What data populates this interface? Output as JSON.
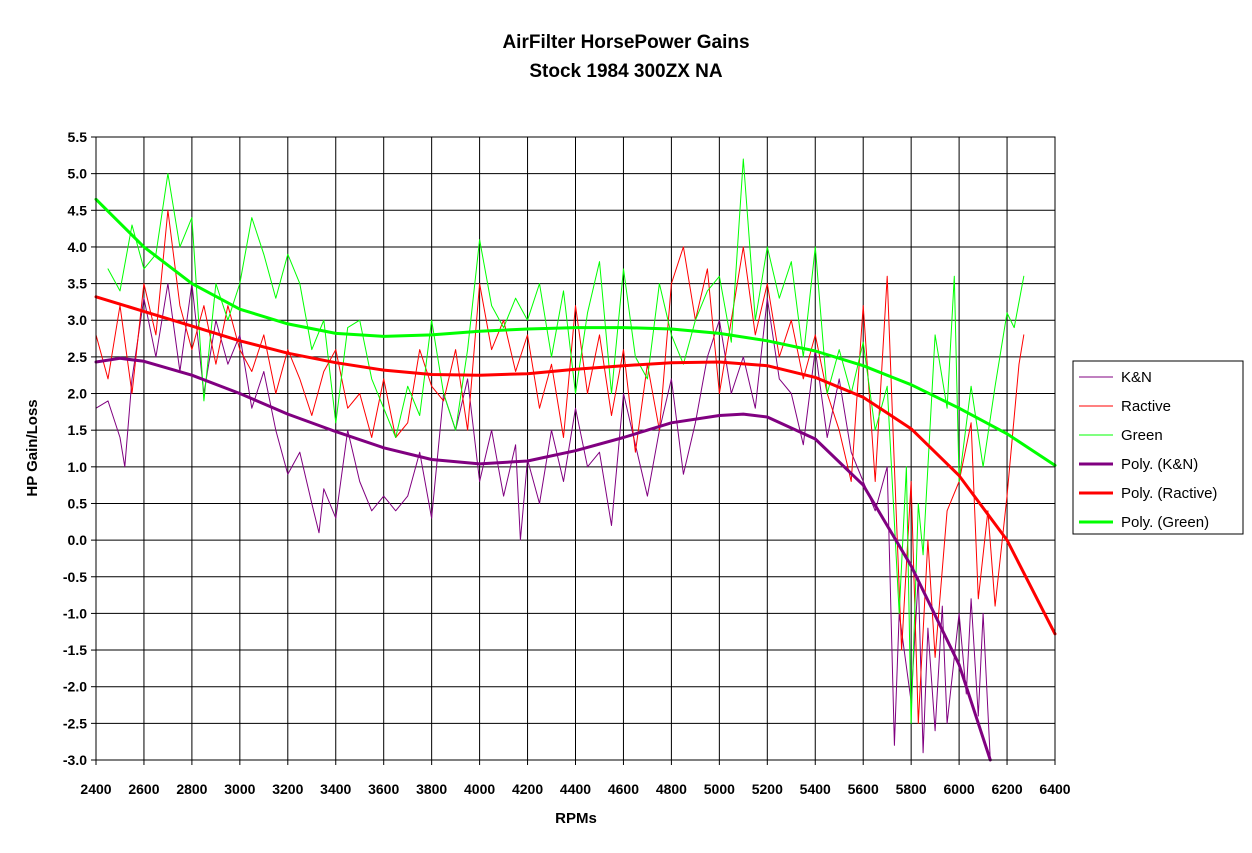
{
  "chart_data": {
    "type": "line",
    "title": "AirFilter HorsePower Gains",
    "subtitle": "Stock 1984 300ZX NA",
    "xlabel": "RPMs",
    "ylabel": "HP Gain/Loss",
    "xlim": [
      2400,
      6400
    ],
    "ylim": [
      -3.0,
      5.5
    ],
    "x_ticks": [
      2400,
      2600,
      2800,
      3000,
      3200,
      3400,
      3600,
      3800,
      4000,
      4200,
      4400,
      4600,
      4800,
      5000,
      5200,
      5400,
      5600,
      5800,
      6000,
      6200,
      6400
    ],
    "y_ticks": [
      5.5,
      5.0,
      4.5,
      4.0,
      3.5,
      3.0,
      2.5,
      2.0,
      1.5,
      1.0,
      0.5,
      0.0,
      -0.5,
      -1.0,
      -1.5,
      -2.0,
      -2.5,
      -3.0
    ],
    "y_tick_labels": [
      "5.5",
      "5.0",
      "4.5",
      "4.0",
      "3.5",
      "3.0",
      "2.5",
      "2.0",
      "1.5",
      "1.0",
      "0.5",
      "0.0",
      "-0.5",
      "-1.0",
      "-1.5",
      "-2.0",
      "-2.5",
      "-3.0"
    ],
    "grid": true,
    "legend_position": "right",
    "series": [
      {
        "name": "K&N",
        "color": "#800080",
        "width": 1,
        "x": [
          2400,
          2450,
          2500,
          2520,
          2550,
          2600,
          2650,
          2700,
          2750,
          2800,
          2850,
          2900,
          2950,
          3000,
          3050,
          3100,
          3150,
          3200,
          3250,
          3300,
          3330,
          3350,
          3400,
          3450,
          3500,
          3550,
          3600,
          3650,
          3700,
          3750,
          3800,
          3850,
          3900,
          3950,
          4000,
          4050,
          4100,
          4150,
          4170,
          4200,
          4250,
          4300,
          4350,
          4400,
          4450,
          4500,
          4550,
          4600,
          4650,
          4700,
          4750,
          4800,
          4850,
          4900,
          4950,
          5000,
          5050,
          5100,
          5150,
          5200,
          5250,
          5300,
          5350,
          5400,
          5450,
          5500,
          5550,
          5600,
          5650,
          5700,
          5730,
          5750,
          5800,
          5830,
          5850,
          5870,
          5900,
          5930,
          5950,
          6000,
          6030,
          6050,
          6080,
          6100,
          6130
        ],
        "y": [
          1.8,
          1.9,
          1.4,
          1.0,
          2.2,
          3.3,
          2.5,
          3.5,
          2.3,
          3.5,
          2.0,
          3.0,
          2.4,
          2.8,
          1.8,
          2.3,
          1.5,
          0.9,
          1.2,
          0.5,
          0.1,
          0.7,
          0.3,
          1.5,
          0.8,
          0.4,
          0.6,
          0.4,
          0.6,
          1.2,
          0.3,
          2.0,
          1.5,
          2.2,
          0.8,
          1.5,
          0.6,
          1.3,
          0.0,
          1.1,
          0.5,
          1.5,
          0.8,
          1.8,
          1.0,
          1.2,
          0.2,
          2.0,
          1.3,
          0.6,
          1.5,
          2.2,
          0.9,
          1.6,
          2.5,
          3.0,
          2.0,
          2.5,
          1.8,
          3.3,
          2.2,
          2.0,
          1.3,
          2.6,
          1.4,
          2.2,
          1.2,
          0.8,
          0.4,
          1.0,
          -2.8,
          -1.0,
          -2.2,
          -0.5,
          -2.9,
          -1.2,
          -2.6,
          -0.9,
          -2.5,
          -1.0,
          -2.1,
          -0.8,
          -2.4,
          -1.0,
          -3.0
        ]
      },
      {
        "name": "Ractive",
        "color": "#ff0000",
        "width": 1,
        "x": [
          2400,
          2450,
          2500,
          2550,
          2600,
          2650,
          2700,
          2750,
          2800,
          2850,
          2900,
          2950,
          3000,
          3050,
          3100,
          3150,
          3200,
          3250,
          3300,
          3350,
          3400,
          3450,
          3500,
          3550,
          3600,
          3650,
          3700,
          3750,
          3800,
          3850,
          3900,
          3950,
          4000,
          4050,
          4100,
          4150,
          4200,
          4250,
          4300,
          4350,
          4400,
          4450,
          4500,
          4550,
          4600,
          4650,
          4700,
          4750,
          4800,
          4850,
          4900,
          4950,
          5000,
          5050,
          5100,
          5150,
          5200,
          5250,
          5300,
          5350,
          5400,
          5450,
          5500,
          5550,
          5600,
          5650,
          5700,
          5730,
          5760,
          5800,
          5830,
          5870,
          5900,
          5950,
          6000,
          6050,
          6080,
          6120,
          6150,
          6200,
          6250,
          6270
        ],
        "y": [
          2.8,
          2.2,
          3.2,
          2.0,
          3.5,
          2.8,
          4.5,
          3.2,
          2.6,
          3.2,
          2.4,
          3.2,
          2.6,
          2.3,
          2.8,
          2.0,
          2.6,
          2.2,
          1.7,
          2.3,
          2.6,
          1.8,
          2.0,
          1.4,
          2.2,
          1.4,
          1.6,
          2.6,
          2.1,
          1.9,
          2.6,
          1.5,
          3.5,
          2.6,
          3.0,
          2.3,
          2.8,
          1.8,
          2.4,
          1.4,
          3.2,
          2.0,
          2.8,
          1.7,
          2.6,
          1.2,
          2.4,
          1.5,
          3.5,
          4.0,
          3.0,
          3.7,
          2.0,
          3.0,
          4.0,
          2.8,
          3.5,
          2.5,
          3.0,
          2.2,
          2.8,
          2.0,
          1.5,
          0.8,
          3.2,
          0.8,
          3.6,
          1.0,
          -1.5,
          0.8,
          -2.5,
          0.0,
          -1.6,
          0.4,
          0.8,
          1.6,
          -0.8,
          0.4,
          -0.9,
          0.6,
          2.4,
          2.8
        ]
      },
      {
        "name": "Green",
        "color": "#00ff00",
        "width": 1,
        "x": [
          2450,
          2500,
          2550,
          2600,
          2650,
          2700,
          2750,
          2800,
          2850,
          2900,
          2950,
          3000,
          3050,
          3100,
          3150,
          3200,
          3250,
          3300,
          3350,
          3400,
          3450,
          3500,
          3550,
          3600,
          3650,
          3700,
          3750,
          3800,
          3850,
          3900,
          3950,
          4000,
          4050,
          4100,
          4150,
          4200,
          4250,
          4300,
          4350,
          4400,
          4450,
          4500,
          4550,
          4600,
          4650,
          4700,
          4750,
          4800,
          4850,
          4900,
          4950,
          5000,
          5050,
          5100,
          5150,
          5200,
          5250,
          5300,
          5350,
          5400,
          5450,
          5500,
          5550,
          5600,
          5650,
          5700,
          5750,
          5780,
          5800,
          5830,
          5850,
          5880,
          5900,
          5950,
          5980,
          6000,
          6050,
          6100,
          6150,
          6200,
          6230,
          6270
        ],
        "y": [
          3.7,
          3.4,
          4.3,
          3.7,
          3.9,
          5.0,
          4.0,
          4.4,
          1.9,
          3.5,
          3.0,
          3.5,
          4.4,
          3.9,
          3.3,
          3.9,
          3.5,
          2.6,
          3.0,
          1.6,
          2.9,
          3.0,
          2.2,
          1.8,
          1.4,
          2.1,
          1.7,
          3.0,
          2.0,
          1.5,
          2.6,
          4.1,
          3.2,
          2.9,
          3.3,
          3.0,
          3.5,
          2.5,
          3.4,
          2.0,
          3.1,
          3.8,
          2.0,
          3.7,
          2.5,
          2.2,
          3.5,
          2.8,
          2.4,
          3.0,
          3.4,
          3.6,
          2.7,
          5.2,
          3.0,
          4.0,
          3.3,
          3.8,
          2.5,
          4.0,
          2.0,
          2.6,
          2.0,
          2.7,
          1.5,
          2.1,
          -1.0,
          1.0,
          -2.5,
          0.5,
          -0.2,
          1.6,
          2.8,
          1.8,
          3.6,
          0.8,
          2.1,
          1.0,
          2.1,
          3.1,
          2.9,
          3.6
        ]
      },
      {
        "name": "Poly. (K&N)",
        "color": "#800080",
        "width": 3,
        "x": [
          2400,
          2500,
          2600,
          2800,
          3000,
          3200,
          3400,
          3600,
          3800,
          4000,
          4200,
          4400,
          4600,
          4800,
          5000,
          5100,
          5200,
          5400,
          5600,
          5800,
          6000,
          6130
        ],
        "y": [
          2.43,
          2.48,
          2.44,
          2.25,
          2.0,
          1.72,
          1.48,
          1.26,
          1.1,
          1.04,
          1.08,
          1.22,
          1.4,
          1.6,
          1.7,
          1.72,
          1.68,
          1.38,
          0.75,
          -0.35,
          -1.7,
          -3.0
        ]
      },
      {
        "name": "Poly. (Ractive)",
        "color": "#ff0000",
        "width": 3,
        "x": [
          2400,
          2600,
          2800,
          3000,
          3200,
          3400,
          3600,
          3800,
          4000,
          4200,
          4400,
          4600,
          4800,
          5000,
          5200,
          5400,
          5600,
          5800,
          6000,
          6200,
          6400
        ],
        "y": [
          3.32,
          3.12,
          2.92,
          2.72,
          2.55,
          2.42,
          2.32,
          2.26,
          2.25,
          2.27,
          2.33,
          2.38,
          2.42,
          2.43,
          2.38,
          2.22,
          1.95,
          1.52,
          0.88,
          0.0,
          -1.28
        ]
      },
      {
        "name": "Poly. (Green)",
        "color": "#00ff00",
        "width": 3,
        "x": [
          2400,
          2600,
          2800,
          3000,
          3200,
          3400,
          3600,
          3800,
          4000,
          4200,
          4400,
          4600,
          4800,
          5000,
          5200,
          5400,
          5600,
          5800,
          6000,
          6200,
          6400
        ],
        "y": [
          4.65,
          4.0,
          3.5,
          3.15,
          2.95,
          2.82,
          2.78,
          2.8,
          2.85,
          2.88,
          2.9,
          2.9,
          2.88,
          2.82,
          2.72,
          2.58,
          2.38,
          2.12,
          1.8,
          1.45,
          1.02
        ]
      }
    ]
  }
}
